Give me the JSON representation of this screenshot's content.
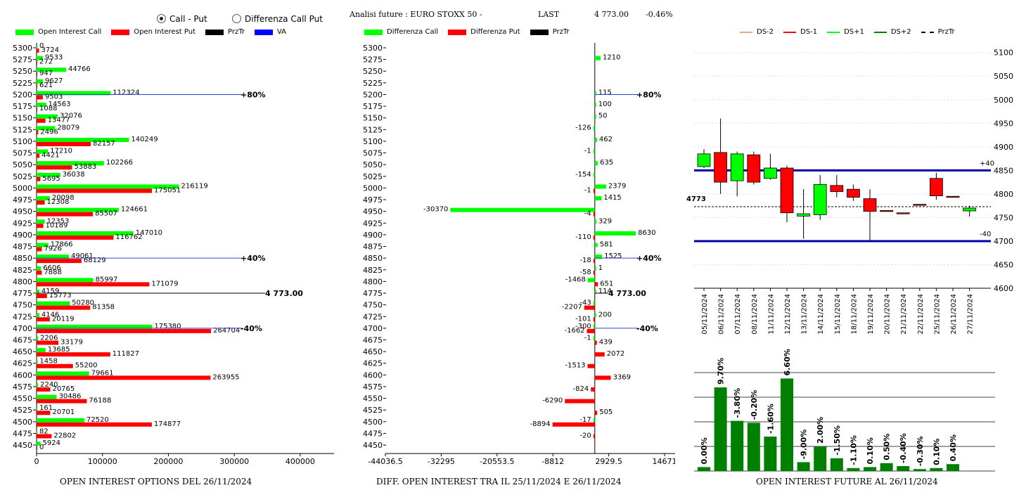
{
  "header": {
    "radio_call_put": "Call - Put",
    "radio_diff": "Differenza Call Put",
    "radio_selected": "call_put",
    "title": "Analisi future : EURO STOXX 50 -",
    "last_label": "LAST",
    "last_value": "4 773.00",
    "change": "-0.46%"
  },
  "colors": {
    "green": "#00ff00",
    "red": "#ff0000",
    "dark_green": "#008000",
    "blue": "#0000cc"
  },
  "footers": {
    "left": "OPEN INTEREST OPTIONS DEL 26/11/2024",
    "middle": "DIFF. OPEN INTEREST TRA IL 25/11/2024 E 26/11/2024",
    "right": "OPEN INTEREST FUTURE AL 26/11/2024"
  },
  "legends": {
    "left": [
      {
        "label": "Open Interest Call",
        "color": "#00ff00"
      },
      {
        "label": "Open Interest Put",
        "color": "#ff0000"
      },
      {
        "label": "PrzTr",
        "color": "#000000"
      },
      {
        "label": "VA",
        "color": "#0000ff"
      }
    ],
    "middle": [
      {
        "label": "Differenza Call",
        "color": "#00ff00"
      },
      {
        "label": "Differenza Put",
        "color": "#ff0000"
      },
      {
        "label": "PrzTr",
        "color": "#000000"
      }
    ],
    "right": [
      {
        "label": "DS-2",
        "color": "#f4a582",
        "style": "solid"
      },
      {
        "label": "DS-1",
        "color": "#ff0000",
        "style": "solid"
      },
      {
        "label": "DS+1",
        "color": "#00ff00",
        "style": "solid"
      },
      {
        "label": "DS+2",
        "color": "#008000",
        "style": "solid"
      },
      {
        "label": "PrzTr",
        "color": "#000000",
        "style": "dashed"
      }
    ]
  },
  "chart_data": [
    {
      "type": "bar",
      "orientation": "horizontal",
      "strikes": [
        5300,
        5275,
        5250,
        5225,
        5200,
        5175,
        5150,
        5125,
        5100,
        5075,
        5050,
        5025,
        5000,
        4975,
        4950,
        4925,
        4900,
        4875,
        4850,
        4825,
        4800,
        4775,
        4750,
        4725,
        4700,
        4675,
        4650,
        4625,
        4600,
        4575,
        4550,
        4525,
        4500,
        4475,
        4450
      ],
      "series": [
        {
          "name": "Open Interest Call",
          "values": [
            0,
            9533,
            44766,
            9627,
            112324,
            14563,
            32076,
            28079,
            140249,
            17210,
            102266,
            36038,
            216119,
            20098,
            124661,
            12353,
            147010,
            17866,
            49061,
            6606,
            85997,
            4159,
            50280,
            4146,
            175380,
            2206,
            13685,
            1458,
            79661,
            2240,
            30486,
            161,
            72520,
            82,
            5924
          ]
        },
        {
          "name": "Open Interest Put",
          "values": [
            3724,
            272,
            947,
            621,
            9503,
            1088,
            13477,
            2496,
            82157,
            4421,
            53883,
            5695,
            175051,
            12308,
            85507,
            10189,
            116762,
            7926,
            68129,
            7888,
            171079,
            15773,
            81358,
            20119,
            264704,
            33179,
            111827,
            55200,
            263955,
            20765,
            76188,
            20701,
            174877,
            22802,
            0
          ]
        }
      ],
      "xticks": [
        "0",
        "100000",
        "200000",
        "300000",
        "400000"
      ],
      "xlim": [
        0,
        430000
      ],
      "annotations": [
        {
          "strike": 5200,
          "label": "+80%"
        },
        {
          "strike": 4850,
          "label": "+40%"
        },
        {
          "strike": 4700,
          "label": "-40%"
        }
      ],
      "last_label": "4 773.00"
    },
    {
      "type": "bar",
      "orientation": "horizontal",
      "strikes": [
        5300,
        5275,
        5250,
        5225,
        5200,
        5175,
        5150,
        5125,
        5100,
        5075,
        5050,
        5025,
        5000,
        4975,
        4950,
        4925,
        4900,
        4875,
        4850,
        4825,
        4800,
        4775,
        4750,
        4725,
        4700,
        4675,
        4650,
        4625,
        4600,
        4575,
        4550,
        4525,
        4500,
        4475,
        4450
      ],
      "series": [
        {
          "name": "Differenza Call",
          "values": [
            null,
            1210,
            null,
            null,
            115,
            100,
            50,
            -126,
            462,
            -1,
            635,
            -154,
            2379,
            1415,
            -30370,
            329,
            8630,
            581,
            1525,
            1,
            -1468,
            114,
            -43,
            200,
            -300,
            -1,
            null,
            null,
            null,
            null,
            null,
            null,
            -17,
            null,
            null
          ]
        },
        {
          "name": "Differenza Put",
          "values": [
            null,
            null,
            null,
            null,
            null,
            null,
            null,
            null,
            null,
            null,
            null,
            null,
            -1,
            null,
            -4,
            null,
            -110,
            null,
            -18,
            -58,
            651,
            null,
            -2207,
            -101,
            -1662,
            439,
            2072,
            -1513,
            3369,
            -824,
            -6290,
            505,
            -8894,
            -20,
            null
          ]
        }
      ],
      "xticks": [
        "-44036.5",
        "-32295",
        "-20553.5",
        "-8812",
        "2929.5",
        "14671"
      ],
      "xlim": [
        -44036.5,
        14671
      ],
      "annotations": [
        {
          "strike": 5200,
          "label": "+80%"
        },
        {
          "strike": 4850,
          "label": "+40%"
        },
        {
          "strike": 4700,
          "label": "-40%"
        }
      ],
      "last_label": "4 773.00"
    },
    {
      "type": "candlestick",
      "dates": [
        "05/11/2024",
        "06/11/2024",
        "07/11/2024",
        "08/11/2024",
        "11/11/2024",
        "12/11/2024",
        "13/11/2024",
        "14/11/2024",
        "15/11/2024",
        "18/11/2024",
        "19/11/2024",
        "20/11/2024",
        "21/11/2024",
        "22/11/2024",
        "25/11/2024",
        "26/11/2024",
        "27/11/2024"
      ],
      "ohlc": [
        [
          4858,
          4895,
          4855,
          4885
        ],
        [
          4888,
          4960,
          4800,
          4825
        ],
        [
          4828,
          4890,
          4795,
          4885
        ],
        [
          4883,
          4890,
          4820,
          4825
        ],
        [
          4833,
          4885,
          4830,
          4855
        ],
        [
          4855,
          4860,
          4740,
          4760
        ],
        [
          4753,
          4810,
          4705,
          4758
        ],
        [
          4756,
          4840,
          4745,
          4820
        ],
        [
          4818,
          4840,
          4793,
          4805
        ],
        [
          4810,
          4820,
          4785,
          4793
        ],
        [
          4790,
          4810,
          4700,
          4763
        ],
        [
          4765,
          4765,
          4765,
          4765
        ],
        [
          4760,
          4760,
          4760,
          4760
        ],
        [
          4778,
          4778,
          4778,
          4778
        ],
        [
          4796,
          4845,
          4788,
          4833
        ],
        [
          4795,
          4795,
          4795,
          4795
        ],
        [
          4764,
          4775,
          4752,
          4770
        ]
      ],
      "up": [
        true,
        false,
        true,
        false,
        true,
        false,
        true,
        true,
        false,
        false,
        false,
        false,
        false,
        false,
        false,
        false,
        true
      ],
      "ylim": [
        4600,
        5110
      ],
      "yticks": [
        "4600",
        "4650",
        "4700",
        "4750",
        "4800",
        "4850",
        "4900",
        "4950",
        "5000",
        "5050",
        "5100"
      ],
      "levels": [
        {
          "value": 4850,
          "label": "+40"
        },
        {
          "value": 4700,
          "label": "-40"
        }
      ],
      "przTr": 4773,
      "przTr_label": "4773"
    },
    {
      "type": "bar",
      "title": "OPEN INTEREST FUTURE AL 26/11/2024",
      "categories": [
        "05/11/2024",
        "06/11/2024",
        "07/11/2024",
        "08/11/2024",
        "11/11/2024",
        "12/11/2024",
        "13/11/2024",
        "14/11/2024",
        "15/11/2024",
        "18/11/2024",
        "19/11/2024",
        "20/11/2024",
        "21/11/2024",
        "22/11/2024",
        "25/11/2024",
        "26/11/2024",
        "27/11/2024"
      ],
      "values": [
        4,
        85,
        51,
        49,
        35,
        94,
        9,
        25,
        13,
        3,
        4,
        8,
        5,
        2,
        3,
        7,
        null
      ],
      "labels": [
        "0.00%",
        "9.70%",
        "-3.80%",
        "-0.20%",
        "-1.60%",
        "6.60%",
        "-9.00%",
        "2.00%",
        "-1.50%",
        "-1.10%",
        "0.10%",
        "0.50%",
        "-0.40%",
        "-0.30%",
        "0.10%",
        "0.40%",
        ""
      ],
      "ylim": [
        0,
        100
      ]
    }
  ]
}
